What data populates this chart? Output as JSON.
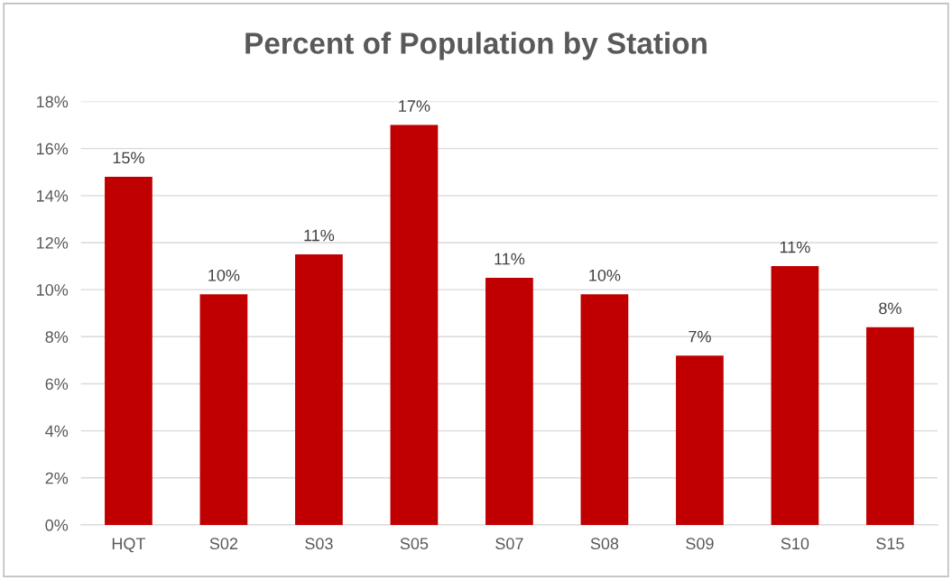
{
  "chart_data": {
    "type": "bar",
    "title": "Percent of Population by Station",
    "categories": [
      "HQT",
      "S02",
      "S03",
      "S05",
      "S07",
      "S08",
      "S09",
      "S10",
      "S15"
    ],
    "values": [
      14.8,
      9.8,
      11.5,
      17.0,
      10.5,
      9.8,
      7.2,
      11.0,
      8.4
    ],
    "value_labels": [
      "15%",
      "10%",
      "11%",
      "17%",
      "11%",
      "10%",
      "7%",
      "11%",
      "8%"
    ],
    "color": "#c00000",
    "ylim": [
      0,
      18
    ],
    "yticks": [
      {
        "value": 0,
        "label": "0%"
      },
      {
        "value": 2,
        "label": "2%"
      },
      {
        "value": 4,
        "label": "4%"
      },
      {
        "value": 6,
        "label": "6%"
      },
      {
        "value": 8,
        "label": "8%"
      },
      {
        "value": 10,
        "label": "10%"
      },
      {
        "value": 12,
        "label": "12%"
      },
      {
        "value": 14,
        "label": "14%"
      },
      {
        "value": 16,
        "label": "16%"
      },
      {
        "value": 18,
        "label": "18%"
      }
    ],
    "grid": "y"
  }
}
